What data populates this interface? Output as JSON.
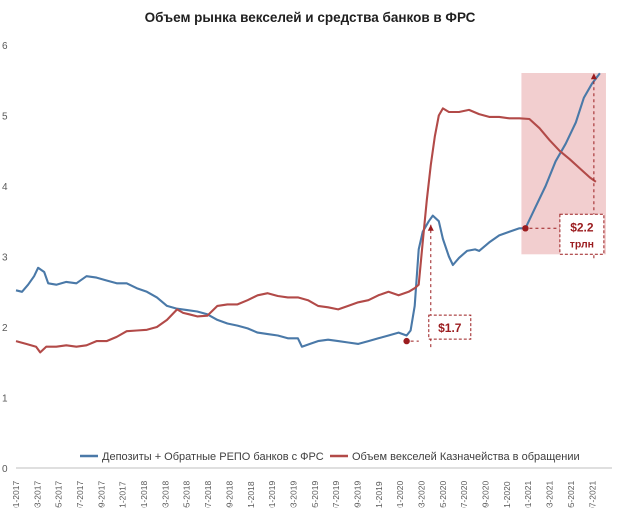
{
  "chart_data": {
    "type": "line",
    "title": "Объем рынка векселей и средства банков в ФРС",
    "ylim": [
      0,
      6
    ],
    "yticks": [
      "0",
      "1",
      "2",
      "3",
      "4",
      "5",
      "6"
    ],
    "x_tick_labels": [
      "01-2017",
      "03-2017",
      "05-2017",
      "07-2017",
      "09-2017",
      "11-2017",
      "01-2018",
      "03-2018",
      "05-2018",
      "07-2018",
      "09-2018",
      "11-2018",
      "01-2019",
      "03-2019",
      "05-2019",
      "07-2019",
      "09-2019",
      "11-2019",
      "01-2020",
      "03-2020",
      "05-2020",
      "07-2020",
      "09-2020",
      "11-2020",
      "01-2021",
      "03-2021",
      "05-2021",
      "07-2021"
    ],
    "grid": false,
    "legend_position": "bottom",
    "series": [
      {
        "name": "Депозиты + Обратные РЕПО банков с ФРС",
        "color": "#4a79a8",
        "values": [
          [
            0,
            2.52
          ],
          [
            0.3,
            2.5
          ],
          [
            0.6,
            2.6
          ],
          [
            0.9,
            2.72
          ],
          [
            1.1,
            2.84
          ],
          [
            1.4,
            2.78
          ],
          [
            1.6,
            2.62
          ],
          [
            2.0,
            2.6
          ],
          [
            2.5,
            2.64
          ],
          [
            3.0,
            2.62
          ],
          [
            3.5,
            2.72
          ],
          [
            4.0,
            2.7
          ],
          [
            4.5,
            2.66
          ],
          [
            5.0,
            2.62
          ],
          [
            5.5,
            2.62
          ],
          [
            6.0,
            2.55
          ],
          [
            6.5,
            2.5
          ],
          [
            7.0,
            2.42
          ],
          [
            7.5,
            2.3
          ],
          [
            8.0,
            2.26
          ],
          [
            8.5,
            2.24
          ],
          [
            9.0,
            2.22
          ],
          [
            9.5,
            2.18
          ],
          [
            10.0,
            2.1
          ],
          [
            10.5,
            2.05
          ],
          [
            11.0,
            2.02
          ],
          [
            11.5,
            1.98
          ],
          [
            12.0,
            1.92
          ],
          [
            12.5,
            1.9
          ],
          [
            13.0,
            1.88
          ],
          [
            13.5,
            1.84
          ],
          [
            14.0,
            1.84
          ],
          [
            14.2,
            1.72
          ],
          [
            14.6,
            1.76
          ],
          [
            15.0,
            1.8
          ],
          [
            15.5,
            1.82
          ],
          [
            16.0,
            1.8
          ],
          [
            16.5,
            1.78
          ],
          [
            17.0,
            1.76
          ],
          [
            17.5,
            1.8
          ],
          [
            18.0,
            1.84
          ],
          [
            18.5,
            1.88
          ],
          [
            19.0,
            1.92
          ],
          [
            19.4,
            1.88
          ],
          [
            19.6,
            1.95
          ],
          [
            19.8,
            2.3
          ],
          [
            20.0,
            3.1
          ],
          [
            20.2,
            3.35
          ],
          [
            20.5,
            3.5
          ],
          [
            20.7,
            3.58
          ],
          [
            21.0,
            3.5
          ],
          [
            21.2,
            3.25
          ],
          [
            21.5,
            3.0
          ],
          [
            21.7,
            2.88
          ],
          [
            22.0,
            2.98
          ],
          [
            22.4,
            3.08
          ],
          [
            22.8,
            3.1
          ],
          [
            23.0,
            3.08
          ],
          [
            23.5,
            3.2
          ],
          [
            24.0,
            3.3
          ],
          [
            24.5,
            3.35
          ],
          [
            25.0,
            3.4
          ],
          [
            25.3,
            3.4
          ],
          [
            25.8,
            3.7
          ],
          [
            26.3,
            4.0
          ],
          [
            26.8,
            4.35
          ],
          [
            27.3,
            4.6
          ],
          [
            27.8,
            4.9
          ],
          [
            28.2,
            5.25
          ],
          [
            28.6,
            5.45
          ],
          [
            29.0,
            5.6
          ]
        ]
      },
      {
        "name": "Объем векселей Казначейства в обращении",
        "color": "#b24a48",
        "values": [
          [
            0,
            1.8
          ],
          [
            0.5,
            1.76
          ],
          [
            1.0,
            1.72
          ],
          [
            1.2,
            1.64
          ],
          [
            1.5,
            1.72
          ],
          [
            2.0,
            1.72
          ],
          [
            2.5,
            1.74
          ],
          [
            3.0,
            1.72
          ],
          [
            3.5,
            1.74
          ],
          [
            4.0,
            1.8
          ],
          [
            4.5,
            1.8
          ],
          [
            5.0,
            1.86
          ],
          [
            5.5,
            1.94
          ],
          [
            6.0,
            1.95
          ],
          [
            6.5,
            1.96
          ],
          [
            7.0,
            2.0
          ],
          [
            7.5,
            2.1
          ],
          [
            8.0,
            2.25
          ],
          [
            8.3,
            2.2
          ],
          [
            8.6,
            2.18
          ],
          [
            9.0,
            2.15
          ],
          [
            9.5,
            2.16
          ],
          [
            10.0,
            2.3
          ],
          [
            10.5,
            2.32
          ],
          [
            11.0,
            2.32
          ],
          [
            11.5,
            2.38
          ],
          [
            12.0,
            2.45
          ],
          [
            12.5,
            2.48
          ],
          [
            13.0,
            2.44
          ],
          [
            13.5,
            2.42
          ],
          [
            14.0,
            2.42
          ],
          [
            14.5,
            2.38
          ],
          [
            15.0,
            2.3
          ],
          [
            15.5,
            2.28
          ],
          [
            16.0,
            2.25
          ],
          [
            16.5,
            2.3
          ],
          [
            17.0,
            2.35
          ],
          [
            17.5,
            2.38
          ],
          [
            18.0,
            2.45
          ],
          [
            18.5,
            2.5
          ],
          [
            19.0,
            2.45
          ],
          [
            19.5,
            2.5
          ],
          [
            19.8,
            2.55
          ],
          [
            20.0,
            2.6
          ],
          [
            20.2,
            3.2
          ],
          [
            20.4,
            3.8
          ],
          [
            20.6,
            4.3
          ],
          [
            20.8,
            4.7
          ],
          [
            21.0,
            5.0
          ],
          [
            21.2,
            5.1
          ],
          [
            21.5,
            5.05
          ],
          [
            22.0,
            5.05
          ],
          [
            22.5,
            5.08
          ],
          [
            23.0,
            5.02
          ],
          [
            23.5,
            4.98
          ],
          [
            24.0,
            4.98
          ],
          [
            24.5,
            4.96
          ],
          [
            25.0,
            4.96
          ],
          [
            25.5,
            4.95
          ],
          [
            26.0,
            4.82
          ],
          [
            26.5,
            4.65
          ],
          [
            27.0,
            4.5
          ],
          [
            27.5,
            4.38
          ],
          [
            28.0,
            4.25
          ],
          [
            28.5,
            4.12
          ],
          [
            28.8,
            4.06
          ]
        ]
      }
    ],
    "annotations": [
      {
        "text": "$1.7",
        "x": 19.4,
        "y": 1.8
      },
      {
        "text": "$2.2",
        "text2": "трлн",
        "x": 25.3,
        "y": 3.4
      },
      {
        "highlight_x_range": [
          25.3,
          29.3
        ],
        "highlight_y_range": [
          3.4,
          5.6
        ]
      }
    ],
    "x_domain": [
      0,
      29.6
    ]
  }
}
